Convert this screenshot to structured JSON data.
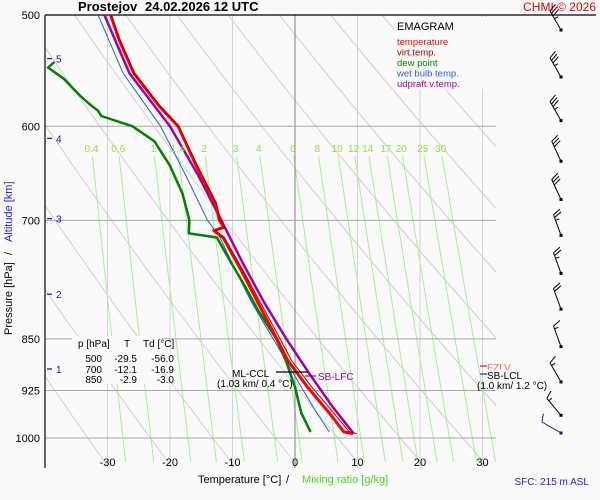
{
  "header": {
    "station": "Prostejov",
    "datetime": "24.02.2026 12 UTC",
    "copyright": "CHMI © 2026"
  },
  "legend": {
    "title": "EMAGRAM",
    "items": [
      {
        "label": "temperature",
        "color": "#ff0000"
      },
      {
        "label": "virt.temp.",
        "color": "#a00000"
      },
      {
        "label": "dew point",
        "color": "#008000"
      },
      {
        "label": "wet bulb temp.",
        "color": "#2060e0"
      },
      {
        "label": "udpraft v.temp.",
        "color": "#a000a0"
      }
    ]
  },
  "table": {
    "headers": [
      "p [hPa]",
      "T",
      "Td [°C]"
    ],
    "rows": [
      [
        "500",
        "-29.5",
        "-56.0"
      ],
      [
        "700",
        "-12.1",
        "-16.9"
      ],
      [
        "850",
        "-2.9",
        "-3.0"
      ]
    ]
  },
  "annotations": {
    "ml_ccl": "ML-CCL",
    "ml_ccl_detail": "(1.03 km/ 0.4 °C)",
    "sb_lfc": "SB-LFC",
    "fzlv": "FZLV",
    "sb_lcl": "SB-LCL",
    "sb_lcl_detail": "(1.0 km/ 1.2 °C)"
  },
  "footer": {
    "xlabel_temp": "Temperature [°C]",
    "xlabel_sep": "/",
    "xlabel_mix": "Mixing ratio [g/kg]",
    "sfc": "SFC: 215 m ASL"
  },
  "yaxis": {
    "pressure_label": "Pressure [hPa]",
    "sep": "/",
    "altitude_label": "Altitude [km]"
  },
  "chart_data": {
    "type": "line",
    "title": "Prostejov 24.02.2026 12 UTC",
    "subtitle": "EMAGRAM",
    "xlabel": "Temperature [°C] / Mixing ratio [g/kg]",
    "ylabel": "Pressure [hPa] / Altitude [km]",
    "xlim": [
      -38,
      32
    ],
    "ylim_pressure": [
      1000,
      500
    ],
    "x_ticks": [
      -30,
      -20,
      -10,
      0,
      10,
      20,
      30
    ],
    "pressure_ticks": [
      500,
      600,
      700,
      850,
      925,
      1000
    ],
    "altitude_ticks_km": [
      1,
      2,
      3,
      4,
      5
    ],
    "altitude_tick_pressure": [
      893,
      790,
      698,
      612,
      537
    ],
    "mixing_ratio_labels": [
      0.4,
      0.6,
      1,
      1.4,
      2,
      3,
      4,
      6,
      8,
      10,
      12,
      14,
      17,
      20,
      25,
      30
    ],
    "grid": true,
    "legend_position": "top-right",
    "series": [
      {
        "name": "temperature",
        "color": "#ff0000",
        "p": [
          500,
          520,
          550,
          580,
          600,
          640,
          680,
          700,
          708,
          712,
          720,
          760,
          800,
          850,
          880,
          920,
          960,
          990,
          993
        ],
        "t": [
          -29.5,
          -28.2,
          -25.8,
          -21.8,
          -18.7,
          -15.8,
          -12.8,
          -12.1,
          -11.4,
          -13.0,
          -11.5,
          -8.6,
          -6.0,
          -2.9,
          -1.2,
          2.0,
          5.5,
          7.8,
          9.3
        ]
      },
      {
        "name": "virt.temp.",
        "color": "#a00000",
        "p": [
          500,
          520,
          550,
          580,
          600,
          640,
          680,
          700,
          708,
          712,
          720,
          760,
          800,
          850,
          880,
          920,
          960,
          990,
          993
        ],
        "t": [
          -29.4,
          -28.1,
          -25.7,
          -21.7,
          -18.6,
          -15.6,
          -12.6,
          -11.9,
          -11.2,
          -12.8,
          -11.3,
          -8.3,
          -5.6,
          -2.4,
          -0.6,
          2.7,
          6.2,
          8.7,
          9.9
        ]
      },
      {
        "name": "dew point",
        "color": "#008000",
        "p": [
          540,
          545,
          555,
          570,
          578,
          585,
          590,
          600,
          615,
          640,
          670,
          700,
          715,
          720,
          740,
          780,
          810,
          850,
          880,
          920,
          960,
          990
        ],
        "t": [
          -38.5,
          -39.5,
          -37.0,
          -34.5,
          -33.0,
          -31.5,
          -31.0,
          -26.0,
          -22.5,
          -20.0,
          -18.0,
          -16.9,
          -17.0,
          -12.5,
          -11.0,
          -8.0,
          -6.0,
          -3.0,
          -1.5,
          0.0,
          1.0,
          2.5
        ]
      },
      {
        "name": "wet bulb temp.",
        "color": "#2060e0",
        "p": [
          500,
          550,
          600,
          650,
          700,
          720,
          760,
          800,
          850,
          880,
          920,
          960,
          990
        ],
        "t": [
          -31.5,
          -27.5,
          -21.5,
          -17.5,
          -14.0,
          -12.0,
          -9.5,
          -7.0,
          -3.5,
          -1.5,
          1.0,
          3.5,
          5.5
        ]
      },
      {
        "name": "udpraft v.temp.",
        "color": "#a000a0",
        "p": [
          500,
          550,
          600,
          650,
          700,
          750,
          800,
          850,
          900,
          950,
          993
        ],
        "t": [
          -30.5,
          -26.5,
          -20.0,
          -15.5,
          -11.8,
          -8.4,
          -5.0,
          -1.4,
          2.3,
          6.0,
          9.4
        ]
      }
    ],
    "wind_barbs": {
      "pressure": [
        500,
        540,
        580,
        620,
        660,
        700,
        745,
        790,
        840,
        890,
        940,
        985
      ],
      "speed_kt": [
        35,
        35,
        35,
        30,
        30,
        25,
        25,
        20,
        15,
        15,
        15,
        10
      ],
      "dir_deg": [
        330,
        330,
        330,
        335,
        335,
        340,
        340,
        340,
        340,
        330,
        320,
        300
      ]
    }
  }
}
